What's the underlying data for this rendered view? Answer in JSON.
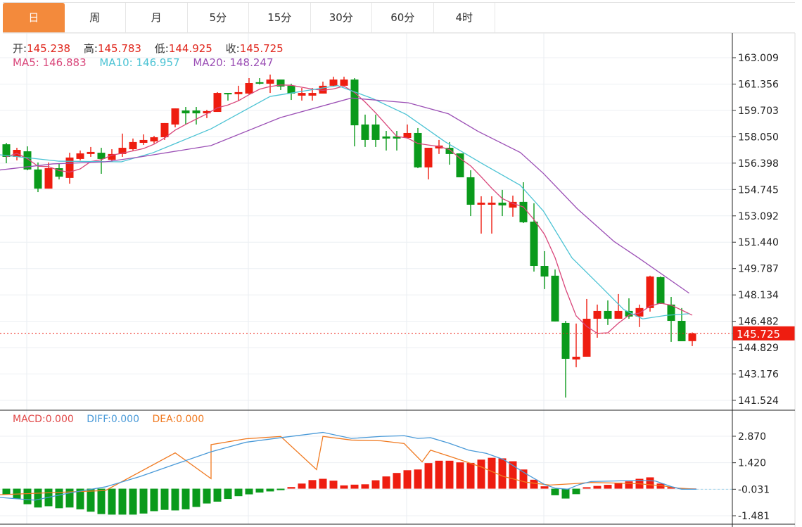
{
  "tabs": [
    {
      "label": "日",
      "active": true
    },
    {
      "label": "周",
      "active": false
    },
    {
      "label": "月",
      "active": false
    },
    {
      "label": "5分",
      "active": false
    },
    {
      "label": "15分",
      "active": false
    },
    {
      "label": "30分",
      "active": false
    },
    {
      "label": "60分",
      "active": false
    },
    {
      "label": "4时",
      "active": false
    }
  ],
  "legend": {
    "open_label": "开:",
    "open": "145.238",
    "high_label": "高:",
    "high": "145.783",
    "low_label": "低:",
    "low": "144.925",
    "close_label": "收:",
    "close": "145.725",
    "ma5_label": "MA5: ",
    "ma5": "146.883",
    "ma10_label": "MA10: ",
    "ma10": "146.957",
    "ma20_label": "MA20: ",
    "ma20": "148.247"
  },
  "macd_legend": {
    "macd_label": "MACD:",
    "macd": "0.000",
    "diff_label": "DIFF:",
    "diff": "0.000",
    "dea_label": "DEA:",
    "dea": "0.000"
  },
  "colors": {
    "up": "#ee1d10",
    "down": "#0a9a1b",
    "ma5": "#d9467a",
    "ma10": "#4cc3d4",
    "ma20": "#9b4fb5",
    "diff": "#4a9ad8",
    "dea": "#f07a21",
    "macd_text": "#e04848",
    "active_tab": "#f38a3c",
    "last_price_tag": "#ee1d10"
  },
  "chart_data": {
    "type": "candlestick",
    "price_axis": {
      "ylim": [
        141.524,
        163.009
      ],
      "ticks": [
        "163.009",
        "161.356",
        "159.703",
        "158.050",
        "156.398",
        "154.745",
        "153.092",
        "151.440",
        "149.787",
        "148.134",
        "146.482",
        "144.829",
        "143.176",
        "141.524"
      ]
    },
    "last_price": "145.725",
    "grid": true,
    "candles_ohlc": [
      [
        157.58,
        157.67,
        156.39,
        156.79
      ],
      [
        156.79,
        157.36,
        156.57,
        157.23
      ],
      [
        157.14,
        157.45,
        155.95,
        156.0
      ],
      [
        156.0,
        156.44,
        154.58,
        154.8
      ],
      [
        154.8,
        156.44,
        154.8,
        156.08
      ],
      [
        156.08,
        156.39,
        155.38,
        155.55
      ],
      [
        155.47,
        157.05,
        155.11,
        156.75
      ],
      [
        156.66,
        157.19,
        156.57,
        157.01
      ],
      [
        156.97,
        157.41,
        156.79,
        157.1
      ],
      [
        157.05,
        157.36,
        155.73,
        156.66
      ],
      [
        156.61,
        157.27,
        156.48,
        156.97
      ],
      [
        156.97,
        158.25,
        156.79,
        157.36
      ],
      [
        157.27,
        157.94,
        157.19,
        157.72
      ],
      [
        157.67,
        158.2,
        157.54,
        157.85
      ],
      [
        157.76,
        158.11,
        157.63,
        158.02
      ],
      [
        158.02,
        158.91,
        157.85,
        158.91
      ],
      [
        158.82,
        159.83,
        158.64,
        159.83
      ],
      [
        159.7,
        159.92,
        158.82,
        159.52
      ],
      [
        159.7,
        159.92,
        158.82,
        159.52
      ],
      [
        159.52,
        159.74,
        159.22,
        159.66
      ],
      [
        159.61,
        160.85,
        159.61,
        160.8
      ],
      [
        160.8,
        160.8,
        160.32,
        160.72
      ],
      [
        160.72,
        161.25,
        160.32,
        160.85
      ],
      [
        160.76,
        161.73,
        160.72,
        161.42
      ],
      [
        161.47,
        161.73,
        161.33,
        161.38
      ],
      [
        161.38,
        161.95,
        160.8,
        161.64
      ],
      [
        161.64,
        161.64,
        160.98,
        161.2
      ],
      [
        161.25,
        161.38,
        160.36,
        160.76
      ],
      [
        160.63,
        161.11,
        160.32,
        160.8
      ],
      [
        160.63,
        161.11,
        160.32,
        160.8
      ],
      [
        160.76,
        161.51,
        160.76,
        161.25
      ],
      [
        161.25,
        161.82,
        161.2,
        161.64
      ],
      [
        161.25,
        161.82,
        161.2,
        161.64
      ],
      [
        161.64,
        161.73,
        157.45,
        158.77
      ],
      [
        158.82,
        159.44,
        157.41,
        157.85
      ],
      [
        158.82,
        159.44,
        157.41,
        157.85
      ],
      [
        158.07,
        158.42,
        157.19,
        157.94
      ],
      [
        158.07,
        158.42,
        157.19,
        157.94
      ],
      [
        157.98,
        158.82,
        157.94,
        158.29
      ],
      [
        158.29,
        158.6,
        156.08,
        156.13
      ],
      [
        156.13,
        157.36,
        155.38,
        157.36
      ],
      [
        157.32,
        157.85,
        156.97,
        157.5
      ],
      [
        157.36,
        157.72,
        156.3,
        156.97
      ],
      [
        157.01,
        157.01,
        155.51,
        155.51
      ],
      [
        155.51,
        155.95,
        153.08,
        153.79
      ],
      [
        153.79,
        154.32,
        151.98,
        153.92
      ],
      [
        153.79,
        154.32,
        151.98,
        153.92
      ],
      [
        153.92,
        154.72,
        153.08,
        153.75
      ],
      [
        153.61,
        154.36,
        153.04,
        153.97
      ],
      [
        153.97,
        155.2,
        152.64,
        152.69
      ],
      [
        152.73,
        153.88,
        149.6,
        149.95
      ],
      [
        149.95,
        150.88,
        148.5,
        149.29
      ],
      [
        149.34,
        149.73,
        146.47,
        146.47
      ],
      [
        146.38,
        146.51,
        141.7,
        144.13
      ],
      [
        144.09,
        146.34,
        143.6,
        144.26
      ],
      [
        144.26,
        147.88,
        144.26,
        146.64
      ],
      [
        146.64,
        147.53,
        145.45,
        147.13
      ],
      [
        147.13,
        147.79,
        146.25,
        146.64
      ],
      [
        146.64,
        148.19,
        146.64,
        147.13
      ],
      [
        147.13,
        147.92,
        146.64,
        146.78
      ],
      [
        146.78,
        147.53,
        146.12,
        147.31
      ],
      [
        147.31,
        149.34,
        147.09,
        149.29
      ],
      [
        149.25,
        149.29,
        147.57,
        147.57
      ],
      [
        147.53,
        148.01,
        145.19,
        146.51
      ],
      [
        146.51,
        147.31,
        145.23,
        145.23
      ],
      [
        145.238,
        145.783,
        144.925,
        145.725
      ]
    ],
    "ma10_points": [
      [
        -0.6,
        156.92
      ],
      [
        5,
        156.52
      ],
      [
        10.9,
        156.48
      ],
      [
        13.9,
        157.05
      ],
      [
        19.4,
        158.55
      ],
      [
        25,
        160.58
      ],
      [
        31.4,
        161.26
      ],
      [
        34.7,
        160.45
      ],
      [
        37.9,
        159.45
      ],
      [
        41.6,
        157.73
      ],
      [
        45.2,
        156.33
      ],
      [
        48.7,
        155.01
      ],
      [
        50.9,
        153.39
      ],
      [
        53.6,
        150.46
      ],
      [
        56.3,
        148.69
      ],
      [
        58.5,
        147.22
      ],
      [
        60.3,
        146.63
      ],
      [
        62.5,
        146.85
      ],
      [
        64.7,
        146.957
      ]
    ],
    "ma20_points": [
      [
        -0.6,
        155.97
      ],
      [
        4.4,
        156.35
      ],
      [
        9.4,
        156.48
      ],
      [
        12.7,
        156.79
      ],
      [
        19.4,
        157.5
      ],
      [
        26,
        159.26
      ],
      [
        32.7,
        160.48
      ],
      [
        38.1,
        160.18
      ],
      [
        41.9,
        159.49
      ],
      [
        44.7,
        158.39
      ],
      [
        48.7,
        157.07
      ],
      [
        50.9,
        155.75
      ],
      [
        54.1,
        153.54
      ],
      [
        57.6,
        151.48
      ],
      [
        59.9,
        150.46
      ],
      [
        64.7,
        148.247
      ]
    ],
    "macd": {
      "ticks": [
        "2.870",
        "1.420",
        "-0.031",
        "-1.481"
      ],
      "histogram": [
        -0.33,
        -0.55,
        -0.85,
        -1.03,
        -0.96,
        -1.07,
        -1.03,
        -1.13,
        -1.26,
        -1.39,
        -1.42,
        -1.42,
        -1.42,
        -1.36,
        -1.23,
        -1.16,
        -1.19,
        -1.13,
        -1.0,
        -0.81,
        -0.71,
        -0.56,
        -0.41,
        -0.31,
        -0.21,
        -0.15,
        -0.08,
        0.09,
        0.28,
        0.47,
        0.54,
        0.44,
        0.18,
        0.22,
        0.24,
        0.46,
        0.67,
        0.86,
        1.01,
        1.05,
        1.4,
        1.53,
        1.53,
        1.44,
        1.41,
        1.59,
        1.69,
        1.66,
        1.5,
        1.05,
        0.49,
        0.13,
        -0.36,
        -0.54,
        -0.3,
        0.08,
        0.15,
        0.21,
        0.33,
        0.4,
        0.54,
        0.62,
        0.28,
        0.08,
        0.02,
        0.01
      ],
      "diff_points": [
        [
          -0.6,
          -0.48
        ],
        [
          2.7,
          -0.63
        ],
        [
          6.1,
          -0.22
        ],
        [
          9.4,
          0.1
        ],
        [
          12.7,
          0.67
        ],
        [
          16,
          1.34
        ],
        [
          19.4,
          2.02
        ],
        [
          22.7,
          2.54
        ],
        [
          26,
          2.79
        ],
        [
          30,
          3.08
        ],
        [
          32.7,
          2.75
        ],
        [
          35.5,
          2.86
        ],
        [
          37.7,
          2.9
        ],
        [
          39,
          2.75
        ],
        [
          40.2,
          2.79
        ],
        [
          41.9,
          2.5
        ],
        [
          43.8,
          2.11
        ],
        [
          45.5,
          1.93
        ],
        [
          47.1,
          1.6
        ],
        [
          49.3,
          0.8
        ],
        [
          51,
          0.23
        ],
        [
          52,
          0.03
        ],
        [
          53.2,
          -0.03
        ],
        [
          54.3,
          0.23
        ],
        [
          55.4,
          0.39
        ],
        [
          57.6,
          0.42
        ],
        [
          59.9,
          0.46
        ],
        [
          61.5,
          0.42
        ],
        [
          63.1,
          0.1
        ],
        [
          64,
          -0.03
        ],
        [
          65.4,
          -0.03
        ]
      ],
      "dea_points": [
        [
          -0.6,
          -0.33
        ],
        [
          9.4,
          -0.1
        ],
        [
          19.4,
          0.55
        ],
        [
          29.4,
          1.04
        ],
        [
          39.4,
          1.47
        ],
        [
          16,
          1.96
        ],
        [
          19.4,
          2.41
        ],
        [
          22.7,
          2.73
        ],
        [
          26,
          2.86
        ],
        [
          30,
          2.86
        ],
        [
          32.7,
          2.66
        ],
        [
          35.5,
          2.62
        ],
        [
          37.7,
          2.47
        ],
        [
          40.2,
          2.11
        ],
        [
          42.7,
          1.64
        ],
        [
          45,
          1.19
        ],
        [
          47.1,
          0.67
        ],
        [
          49.3,
          0.35
        ],
        [
          51.5,
          0.2
        ],
        [
          53.7,
          0.27
        ],
        [
          55.4,
          0.34
        ],
        [
          57.6,
          0.31
        ],
        [
          59.9,
          0.27
        ],
        [
          62.1,
          0.16
        ],
        [
          63.7,
          0.03
        ],
        [
          65.4,
          -0.03
        ]
      ]
    }
  }
}
